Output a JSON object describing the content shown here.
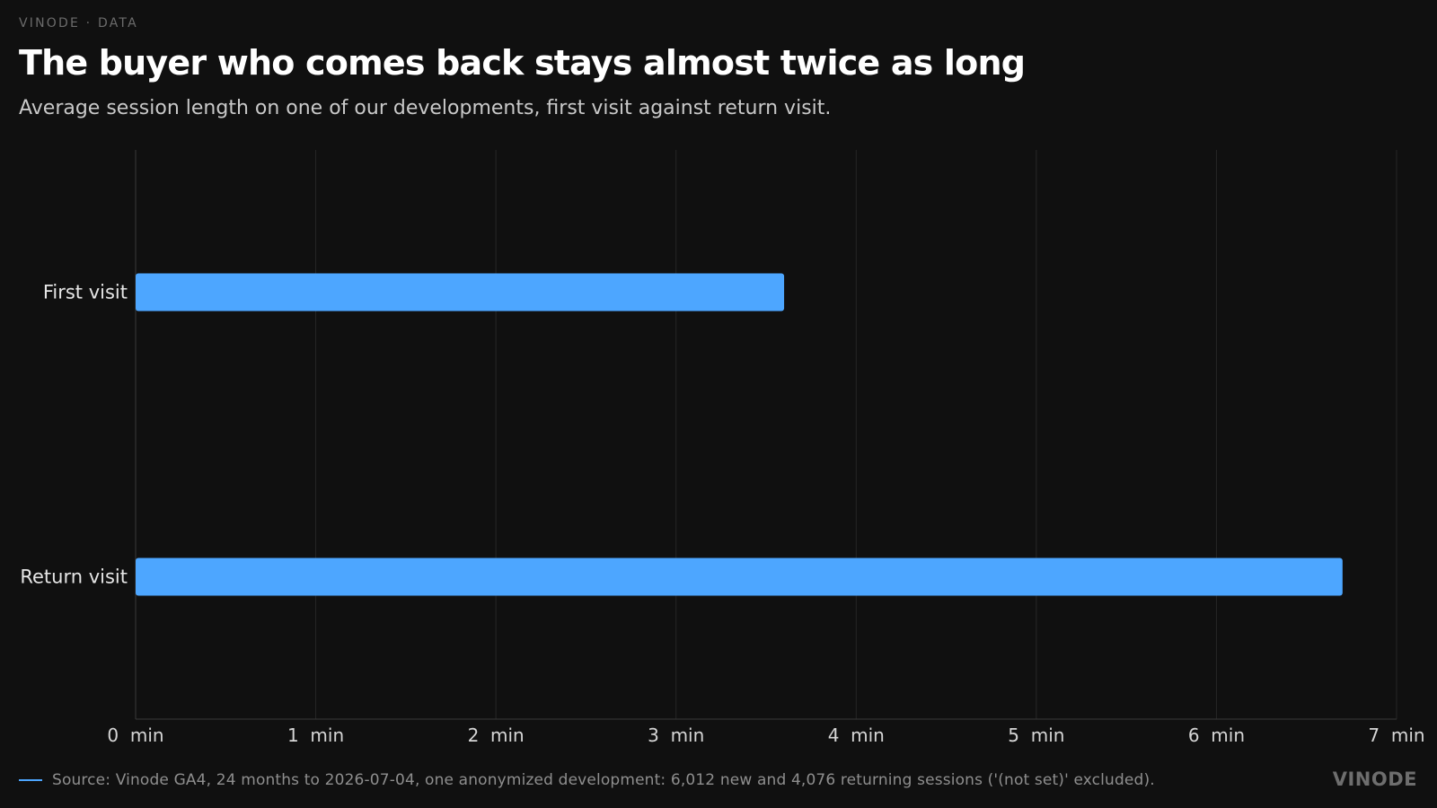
{
  "header": {
    "kicker": "VINODE · DATA",
    "title": "The buyer who comes back stays almost twice as long",
    "subtitle": "Average session length on one of our developments, first visit against return visit."
  },
  "chart_data": {
    "type": "bar",
    "orientation": "horizontal",
    "categories": [
      "First visit",
      "Return visit"
    ],
    "values": [
      3.6,
      6.7
    ],
    "unit": "min",
    "xlim": [
      0,
      7
    ],
    "xticks": [
      0,
      1,
      2,
      3,
      4,
      5,
      6,
      7
    ],
    "tick_labels": [
      "0  min",
      "1  min",
      "2  min",
      "3  min",
      "4  min",
      "5  min",
      "6  min",
      "7  min"
    ],
    "grid": "vertical",
    "bar_color": "#4da6ff"
  },
  "footer": {
    "source": "Source: Vinode GA4, 24 months to 2026-07-04, one anonymized development: 6,012 new and 4,076 returning sessions ('(not set)' excluded).",
    "brand": "VINODE"
  },
  "colors": {
    "background": "#101010",
    "accent": "#4da6ff",
    "grid": "#262626"
  }
}
